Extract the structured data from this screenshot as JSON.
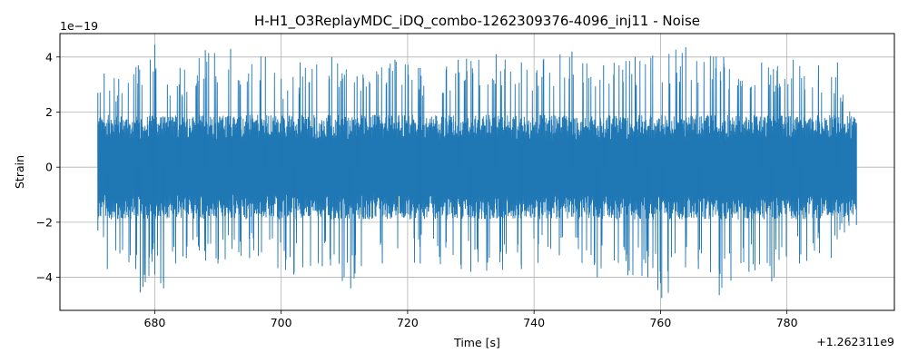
{
  "chart_data": {
    "type": "line",
    "title": "H-H1_O3ReplayMDC_iDQ_combo-1262309376-4096_inj11 - Noise",
    "xlabel": "Time [s]",
    "ylabel": "Strain",
    "x_offset_label": "+1.262311e9",
    "y_scale_label": "1e−19",
    "xlim": [
      665.0,
      797.0
    ],
    "ylim": [
      -5.2,
      4.85
    ],
    "x_ticks": [
      680,
      700,
      720,
      740,
      760,
      780
    ],
    "y_ticks": [
      -4,
      -2,
      0,
      2,
      4
    ],
    "grid": true,
    "color": "#1f77b4",
    "series": [
      {
        "x_range": [
          671.0,
          791.0
        ],
        "envelope_peaks": [
          {
            "x": 671.0,
            "y": 2.7
          },
          {
            "x": 672.0,
            "y": 3.4
          },
          {
            "x": 674.3,
            "y": 3.2
          },
          {
            "x": 677.4,
            "y": 3.7
          },
          {
            "x": 679.3,
            "y": 3.9
          },
          {
            "x": 680.0,
            "y": 4.45
          },
          {
            "x": 682.0,
            "y": 3.0
          },
          {
            "x": 684.0,
            "y": 3.6
          },
          {
            "x": 688.0,
            "y": 4.25
          },
          {
            "x": 692.0,
            "y": 4.3
          },
          {
            "x": 697.5,
            "y": 4.0
          },
          {
            "x": 700.0,
            "y": 3.2
          },
          {
            "x": 703.0,
            "y": 3.8
          },
          {
            "x": 708.0,
            "y": 4.0
          },
          {
            "x": 712.0,
            "y": 3.3
          },
          {
            "x": 718.0,
            "y": 3.9
          },
          {
            "x": 722.0,
            "y": 3.6
          },
          {
            "x": 728.0,
            "y": 3.9
          },
          {
            "x": 734.0,
            "y": 4.1
          },
          {
            "x": 738.0,
            "y": 3.8
          },
          {
            "x": 746.0,
            "y": 4.2
          },
          {
            "x": 751.0,
            "y": 3.7
          },
          {
            "x": 756.0,
            "y": 4.0
          },
          {
            "x": 764.0,
            "y": 4.35
          },
          {
            "x": 770.0,
            "y": 4.0
          },
          {
            "x": 776.0,
            "y": 3.8
          },
          {
            "x": 781.0,
            "y": 3.9
          },
          {
            "x": 785.0,
            "y": 3.7
          },
          {
            "x": 788.0,
            "y": 3.8
          },
          {
            "x": 791.0,
            "y": 1.6
          }
        ],
        "envelope_troughs": [
          {
            "x": 671.0,
            "y": -2.3
          },
          {
            "x": 672.5,
            "y": -3.7
          },
          {
            "x": 677.0,
            "y": -3.7
          },
          {
            "x": 677.7,
            "y": -4.55
          },
          {
            "x": 680.0,
            "y": -3.9
          },
          {
            "x": 681.4,
            "y": -4.4
          },
          {
            "x": 685.0,
            "y": -3.3
          },
          {
            "x": 690.0,
            "y": -3.5
          },
          {
            "x": 695.0,
            "y": -3.3
          },
          {
            "x": 702.0,
            "y": -3.9
          },
          {
            "x": 706.5,
            "y": -3.6
          },
          {
            "x": 711.0,
            "y": -4.4
          },
          {
            "x": 716.0,
            "y": -3.5
          },
          {
            "x": 722.0,
            "y": -3.5
          },
          {
            "x": 730.0,
            "y": -3.8
          },
          {
            "x": 738.0,
            "y": -3.7
          },
          {
            "x": 744.0,
            "y": -3.2
          },
          {
            "x": 750.0,
            "y": -4.0
          },
          {
            "x": 758.0,
            "y": -4.0
          },
          {
            "x": 760.2,
            "y": -4.75
          },
          {
            "x": 766.0,
            "y": -3.7
          },
          {
            "x": 769.3,
            "y": -4.65
          },
          {
            "x": 774.0,
            "y": -3.8
          },
          {
            "x": 777.6,
            "y": -4.15
          },
          {
            "x": 782.0,
            "y": -3.5
          },
          {
            "x": 787.0,
            "y": -3.3
          },
          {
            "x": 791.0,
            "y": -2.1
          }
        ]
      }
    ]
  }
}
